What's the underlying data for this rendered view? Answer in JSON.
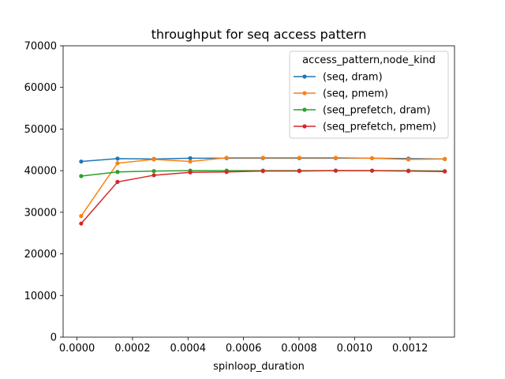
{
  "chart_data": {
    "type": "line",
    "title": "throughput for seq access pattern",
    "xlabel": "spinloop_duration",
    "ylabel": "",
    "xlim": [
      -5e-05,
      0.00136
    ],
    "ylim": [
      0,
      70000
    ],
    "xticks": [
      0.0,
      0.0002,
      0.0004,
      0.0006,
      0.0008,
      0.001,
      0.0012
    ],
    "xtick_labels": [
      "0.0000",
      "0.0002",
      "0.0004",
      "0.0006",
      "0.0008",
      "0.0010",
      "0.0012"
    ],
    "yticks": [
      0,
      10000,
      20000,
      30000,
      40000,
      50000,
      60000,
      70000
    ],
    "ytick_labels": [
      "0",
      "10000",
      "20000",
      "30000",
      "40000",
      "50000",
      "60000",
      "70000"
    ],
    "grid": false,
    "legend": {
      "title": "access_pattern,node_kind",
      "position": "top-right"
    },
    "x": [
      1.5e-05,
      0.000146,
      0.000277,
      0.000408,
      0.000539,
      0.00067,
      0.000801,
      0.000932,
      0.001063,
      0.001194,
      0.001325
    ],
    "series": [
      {
        "name": "(seq, dram)",
        "color": "#1f77b4",
        "values": [
          42200,
          42900,
          42800,
          43000,
          43000,
          43000,
          43000,
          43000,
          43000,
          42900,
          42800
        ]
      },
      {
        "name": "(seq, pmem)",
        "color": "#ff7f0e",
        "values": [
          29100,
          41800,
          42700,
          42200,
          43100,
          43100,
          43100,
          43100,
          43000,
          42700,
          42800
        ]
      },
      {
        "name": "(seq_prefetch, dram)",
        "color": "#2ca02c",
        "values": [
          38700,
          39700,
          39900,
          40000,
          40000,
          40000,
          40000,
          40000,
          40000,
          40000,
          39900
        ]
      },
      {
        "name": "(seq_prefetch, pmem)",
        "color": "#d62728",
        "values": [
          27300,
          37300,
          38900,
          39600,
          39700,
          39900,
          39900,
          40000,
          40000,
          39900,
          39800
        ]
      }
    ]
  }
}
